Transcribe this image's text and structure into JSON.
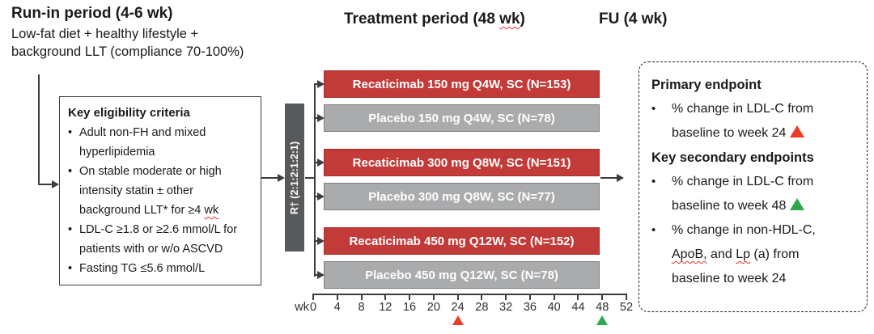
{
  "colors": {
    "active_bar": "#C23B38",
    "active_bar_border": "#A5302C",
    "placebo_bar": "#AAABAD",
    "placebo_bar_border": "#7F7F7F",
    "randomization_box": "#58595B",
    "marker_red": "#ED3A28",
    "marker_green": "#2FA84D",
    "squiggle": "#E03131",
    "line": "#3d3d3d"
  },
  "run_in": {
    "title": "Run-in period (4-6 wk)",
    "subtitle_lines": [
      "Low-fat diet + healthy lifestyle +",
      "background LLT (compliance 70-100%)"
    ]
  },
  "period_headers": {
    "treatment_segments": [
      {
        "t": "Treatment period (48 "
      },
      {
        "t": "wk",
        "sq": true
      },
      {
        "t": ")"
      }
    ],
    "followup": "FU (4 wk)"
  },
  "eligibility": {
    "title": "Key eligibility criteria",
    "bullet_char": "•",
    "bullets": [
      {
        "lines": [
          [
            {
              "t": "Adult non-FH and mixed"
            }
          ],
          [
            {
              "t": "hyperlipidemia"
            }
          ]
        ]
      },
      {
        "lines": [
          [
            {
              "t": "On stable moderate or high"
            }
          ],
          [
            {
              "t": "intensity statin ± other"
            }
          ],
          [
            {
              "t": "background LLT* for ≥4 "
            },
            {
              "t": "wk",
              "sq": true
            }
          ]
        ]
      },
      {
        "lines": [
          [
            {
              "t": "LDL-C ≥1.8 or ≥2.6 mmol/L for"
            }
          ],
          [
            {
              "t": "patients with or w/o ASCVD"
            }
          ]
        ]
      },
      {
        "lines": [
          [
            {
              "t": "Fasting TG ≤5.6 mmol/L"
            }
          ]
        ]
      }
    ]
  },
  "randomization_label": "R† (2:1:2:1:2:1)",
  "arms": [
    {
      "label": "Recaticimab 150 mg Q4W, SC (N=153)",
      "type": "recaticimab"
    },
    {
      "label": "Placebo 150 mg Q4W, SC (N=78)",
      "type": "placebo"
    },
    {
      "label": "Recaticimab 300 mg Q8W, SC (N=151)",
      "type": "recaticimab"
    },
    {
      "label": "Placebo 300 mg Q8W, SC (N=77)",
      "type": "placebo"
    },
    {
      "label": "Recaticimab 450 mg Q12W, SC (N=152)",
      "type": "recaticimab"
    },
    {
      "label": "Placebo 450 mg Q12W, SC (N=78)",
      "type": "placebo"
    }
  ],
  "timeline": {
    "unit": "wk",
    "tick_labels": [
      "0",
      "4",
      "8",
      "12",
      "16",
      "20",
      "24",
      "28",
      "32",
      "36",
      "40",
      "44",
      "48",
      "52"
    ],
    "markers": [
      {
        "week": "24",
        "color": "#ED3A28"
      },
      {
        "week": "48",
        "color": "#2FA84D"
      }
    ]
  },
  "endpoints": {
    "bullet_char": "•",
    "sections": [
      {
        "heading": "Primary endpoint",
        "bullets": [
          {
            "lines": [
              [
                {
                  "t": "% change in LDL-C from"
                }
              ],
              [
                {
                  "t": "baseline to week 24"
                },
                {
                  "tri": "red"
                }
              ]
            ]
          }
        ]
      },
      {
        "heading": "Key secondary endpoints",
        "bullets": [
          {
            "lines": [
              [
                {
                  "t": "% change in LDL-C from"
                }
              ],
              [
                {
                  "t": "baseline to week 48"
                },
                {
                  "tri": "green"
                }
              ]
            ]
          },
          {
            "lines": [
              [
                {
                  "t": "% change in non-HDL-C,"
                }
              ],
              [
                {
                  "t": "ApoB,",
                  "sq": true
                },
                {
                  "t": " and "
                },
                {
                  "t": "Lp",
                  "sq": true
                },
                {
                  "t": " (a) from"
                }
              ],
              [
                {
                  "t": "baseline to week 24"
                }
              ]
            ]
          }
        ]
      }
    ]
  }
}
